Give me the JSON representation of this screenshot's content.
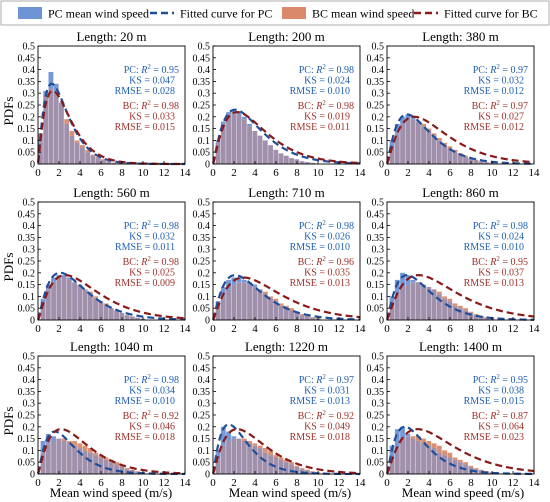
{
  "legend": {
    "items": [
      {
        "label": "PC mean wind speed",
        "kind": "bar",
        "color": "#6f94d4"
      },
      {
        "label": "Fitted curve for PC",
        "kind": "line",
        "color": "#1f4e9c"
      },
      {
        "label": "BC mean wind speed",
        "kind": "bar",
        "color": "#d88a6a"
      },
      {
        "label": "Fitted curve for BC",
        "kind": "line",
        "color": "#8b1a1a"
      }
    ]
  },
  "colors": {
    "pc_bar": "#6f94d4",
    "bc_bar": "#d88a6a",
    "pc_curve": "#1f4e9c",
    "bc_curve": "#8b1a1a",
    "pc_text": "#1f5fb0",
    "bc_text": "#a0322a",
    "overlap": "#9b8aa6"
  },
  "xlabel": "Mean wind speed (m/s)",
  "ylabel": "PDFs",
  "chart_data": [
    {
      "type": "bar",
      "title": "Length: 20 m",
      "x": [
        0.25,
        0.75,
        1.25,
        1.75,
        2.25,
        2.75,
        3.25,
        3.75,
        4.25,
        4.75,
        5.25,
        5.75,
        6.25,
        6.75,
        7.25,
        7.75
      ],
      "series": [
        {
          "name": "PC mean wind speed",
          "values": [
            0.13,
            0.31,
            0.39,
            0.34,
            0.26,
            0.17,
            0.12,
            0.09,
            0.07,
            0.05,
            0.035,
            0.025,
            0.015,
            0.01,
            0.005,
            0.003
          ]
        },
        {
          "name": "BC mean wind speed",
          "values": [
            0.13,
            0.29,
            0.32,
            0.3,
            0.25,
            0.19,
            0.14,
            0.1,
            0.08,
            0.06,
            0.04,
            0.03,
            0.02,
            0.012,
            0.006,
            0.003
          ]
        }
      ],
      "fit": {
        "pc_peak": [
          1.3,
          0.34
        ],
        "bc_peak": [
          1.4,
          0.31
        ]
      },
      "stats": {
        "pc": {
          "r2": "0.95",
          "ks": "0.047",
          "rmse": "0.028"
        },
        "bc": {
          "r2": "0.98",
          "ks": "0.033",
          "rmse": "0.015"
        }
      },
      "xlim": [
        0,
        14
      ],
      "ylim": [
        0,
        0.5
      ],
      "xticks": [
        0,
        2,
        4,
        6,
        8,
        10,
        12,
        14
      ],
      "yticks": [
        "0",
        "0.05",
        "0.1",
        "0.15",
        "0.2",
        "0.25",
        "0.3",
        "0.35",
        "0.4",
        "0.45",
        "0.5"
      ]
    },
    {
      "type": "bar",
      "title": "Length: 200 m",
      "x": [
        0.5,
        1.0,
        1.5,
        2.0,
        2.5,
        3.0,
        3.5,
        4.0,
        4.5,
        5.0,
        5.5,
        6.0,
        6.5,
        7.0,
        7.5,
        8.0,
        8.5,
        9.0,
        9.5
      ],
      "series": [
        {
          "name": "PC mean wind speed",
          "values": [
            0.1,
            0.18,
            0.22,
            0.23,
            0.22,
            0.2,
            0.17,
            0.14,
            0.12,
            0.1,
            0.08,
            0.06,
            0.045,
            0.035,
            0.025,
            0.02,
            0.012,
            0.008,
            0.005
          ]
        },
        {
          "name": "BC mean wind speed",
          "values": [
            0.09,
            0.17,
            0.21,
            0.22,
            0.21,
            0.19,
            0.16,
            0.14,
            0.12,
            0.1,
            0.08,
            0.06,
            0.045,
            0.035,
            0.025,
            0.02,
            0.012,
            0.008,
            0.005
          ]
        }
      ],
      "fit": {
        "pc_peak": [
          2.1,
          0.23
        ],
        "bc_peak": [
          2.3,
          0.22
        ]
      },
      "stats": {
        "pc": {
          "r2": "0.98",
          "ks": "0.024",
          "rmse": "0.010"
        },
        "bc": {
          "r2": "0.98",
          "ks": "0.019",
          "rmse": "0.011"
        }
      },
      "xlim": [
        0,
        14
      ],
      "ylim": [
        0,
        0.5
      ],
      "xticks": [
        0,
        2,
        4,
        6,
        8,
        10,
        12,
        14
      ],
      "yticks": [
        "0",
        "0.05",
        "0.1",
        "0.15",
        "0.2",
        "0.25",
        "0.3",
        "0.35",
        "0.4",
        "0.45",
        "0.5"
      ]
    },
    {
      "type": "bar",
      "title": "Length: 380 m",
      "x": [
        0.5,
        1.0,
        1.5,
        2.0,
        2.5,
        3.0,
        3.5,
        4.0,
        4.5,
        5.0,
        5.5,
        6.0,
        6.5,
        7.0,
        7.5,
        8.0,
        8.5,
        9.0,
        9.5,
        10.0
      ],
      "series": [
        {
          "name": "PC mean wind speed",
          "values": [
            0.1,
            0.17,
            0.2,
            0.21,
            0.2,
            0.18,
            0.16,
            0.14,
            0.12,
            0.1,
            0.08,
            0.065,
            0.05,
            0.04,
            0.03,
            0.022,
            0.015,
            0.01,
            0.006,
            0.004
          ]
        },
        {
          "name": "BC mean wind speed",
          "values": [
            0.07,
            0.13,
            0.17,
            0.19,
            0.19,
            0.18,
            0.17,
            0.15,
            0.13,
            0.11,
            0.09,
            0.075,
            0.06,
            0.045,
            0.035,
            0.025,
            0.018,
            0.012,
            0.008,
            0.005
          ]
        }
      ],
      "fit": {
        "pc_peak": [
          1.9,
          0.21
        ],
        "bc_peak": [
          2.6,
          0.2
        ]
      },
      "stats": {
        "pc": {
          "r2": "0.97",
          "ks": "0.032",
          "rmse": "0.012"
        },
        "bc": {
          "r2": "0.97",
          "ks": "0.027",
          "rmse": "0.012"
        }
      },
      "xlim": [
        0,
        14
      ],
      "ylim": [
        0,
        0.5
      ],
      "xticks": [
        0,
        2,
        4,
        6,
        8,
        10,
        12,
        14
      ],
      "yticks": [
        "0",
        "0.05",
        "0.1",
        "0.15",
        "0.2",
        "0.25",
        "0.3",
        "0.35",
        "0.4",
        "0.45",
        "0.5"
      ]
    },
    {
      "type": "bar",
      "title": "Length: 560 m",
      "x": [
        0.5,
        1.0,
        1.5,
        2.0,
        2.5,
        3.0,
        3.5,
        4.0,
        4.5,
        5.0,
        5.5,
        6.0,
        6.5,
        7.0,
        7.5,
        8.0,
        8.5,
        9.0,
        9.5,
        10.0
      ],
      "series": [
        {
          "name": "PC mean wind speed",
          "values": [
            0.09,
            0.15,
            0.18,
            0.19,
            0.19,
            0.18,
            0.16,
            0.15,
            0.13,
            0.11,
            0.09,
            0.08,
            0.06,
            0.05,
            0.04,
            0.03,
            0.02,
            0.015,
            0.01,
            0.006
          ]
        },
        {
          "name": "BC mean wind speed",
          "values": [
            0.07,
            0.13,
            0.16,
            0.18,
            0.18,
            0.17,
            0.16,
            0.15,
            0.13,
            0.12,
            0.1,
            0.08,
            0.07,
            0.05,
            0.04,
            0.03,
            0.022,
            0.015,
            0.01,
            0.006
          ]
        }
      ],
      "fit": {
        "pc_peak": [
          2.1,
          0.2
        ],
        "bc_peak": [
          2.6,
          0.19
        ]
      },
      "stats": {
        "pc": {
          "r2": "0.98",
          "ks": "0.032",
          "rmse": "0.011"
        },
        "bc": {
          "r2": "0.98",
          "ks": "0.025",
          "rmse": "0.009"
        }
      },
      "xlim": [
        0,
        14
      ],
      "ylim": [
        0,
        0.5
      ],
      "xticks": [
        0,
        2,
        4,
        6,
        8,
        10,
        12,
        14
      ],
      "yticks": [
        "0",
        "0.05",
        "0.1",
        "0.15",
        "0.2",
        "0.25",
        "0.3",
        "0.35",
        "0.4",
        "0.45",
        "0.5"
      ]
    },
    {
      "type": "bar",
      "title": "Length: 710 m",
      "x": [
        0.5,
        1.0,
        1.5,
        2.0,
        2.5,
        3.0,
        3.5,
        4.0,
        4.5,
        5.0,
        5.5,
        6.0,
        6.5,
        7.0,
        7.5,
        8.0,
        8.5,
        9.0,
        9.5,
        10.0
      ],
      "series": [
        {
          "name": "PC mean wind speed",
          "values": [
            0.08,
            0.14,
            0.17,
            0.18,
            0.18,
            0.17,
            0.16,
            0.15,
            0.13,
            0.11,
            0.09,
            0.08,
            0.06,
            0.05,
            0.04,
            0.03,
            0.02,
            0.015,
            0.01,
            0.006
          ]
        },
        {
          "name": "BC mean wind speed",
          "values": [
            0.06,
            0.1,
            0.13,
            0.15,
            0.16,
            0.16,
            0.15,
            0.14,
            0.13,
            0.12,
            0.1,
            0.09,
            0.07,
            0.06,
            0.05,
            0.035,
            0.025,
            0.018,
            0.012,
            0.008
          ]
        }
      ],
      "fit": {
        "pc_peak": [
          2.1,
          0.19
        ],
        "bc_peak": [
          2.9,
          0.18
        ]
      },
      "stats": {
        "pc": {
          "r2": "0.98",
          "ks": "0.026",
          "rmse": "0.010"
        },
        "bc": {
          "r2": "0.96",
          "ks": "0.035",
          "rmse": "0.013"
        }
      },
      "xlim": [
        0,
        14
      ],
      "ylim": [
        0,
        0.5
      ],
      "xticks": [
        0,
        2,
        4,
        6,
        8,
        10,
        12,
        14
      ],
      "yticks": [
        "0",
        "0.05",
        "0.1",
        "0.15",
        "0.2",
        "0.25",
        "0.3",
        "0.35",
        "0.4",
        "0.45",
        "0.5"
      ]
    },
    {
      "type": "bar",
      "title": "Length: 860 m",
      "x": [
        0.5,
        1.0,
        1.5,
        2.0,
        2.5,
        3.0,
        3.5,
        4.0,
        4.5,
        5.0,
        5.5,
        6.0,
        6.5,
        7.0,
        7.5,
        8.0,
        8.5,
        9.0,
        9.5,
        10.0
      ],
      "series": [
        {
          "name": "PC mean wind speed",
          "values": [
            0.1,
            0.17,
            0.2,
            0.19,
            0.17,
            0.16,
            0.15,
            0.14,
            0.13,
            0.11,
            0.09,
            0.08,
            0.06,
            0.05,
            0.04,
            0.03,
            0.02,
            0.015,
            0.01,
            0.006
          ]
        },
        {
          "name": "BC mean wind speed",
          "values": [
            0.06,
            0.11,
            0.14,
            0.15,
            0.16,
            0.16,
            0.15,
            0.14,
            0.13,
            0.12,
            0.1,
            0.09,
            0.07,
            0.06,
            0.05,
            0.035,
            0.025,
            0.018,
            0.012,
            0.008
          ]
        }
      ],
      "fit": {
        "pc_peak": [
          1.9,
          0.19
        ],
        "bc_peak": [
          3.0,
          0.19
        ]
      },
      "stats": {
        "pc": {
          "r2": "0.98",
          "ks": "0.024",
          "rmse": "0.010"
        },
        "bc": {
          "r2": "0.95",
          "ks": "0.037",
          "rmse": "0.013"
        }
      },
      "xlim": [
        0,
        14
      ],
      "ylim": [
        0,
        0.5
      ],
      "xticks": [
        0,
        2,
        4,
        6,
        8,
        10,
        12,
        14
      ],
      "yticks": [
        "0",
        "0.05",
        "0.1",
        "0.15",
        "0.2",
        "0.25",
        "0.3",
        "0.35",
        "0.4",
        "0.45",
        "0.5"
      ]
    },
    {
      "type": "bar",
      "title": "Length: 1040 m",
      "x": [
        0.5,
        1.0,
        1.5,
        2.0,
        2.5,
        3.0,
        3.5,
        4.0,
        4.5,
        5.0,
        5.5,
        6.0,
        6.5,
        7.0,
        7.5,
        8.0,
        8.5,
        9.0,
        9.5,
        10.0
      ],
      "series": [
        {
          "name": "PC mean wind speed",
          "values": [
            0.14,
            0.17,
            0.16,
            0.15,
            0.14,
            0.13,
            0.12,
            0.11,
            0.1,
            0.09,
            0.08,
            0.07,
            0.06,
            0.05,
            0.04,
            0.03,
            0.02,
            0.015,
            0.01,
            0.006
          ]
        },
        {
          "name": "BC mean wind speed",
          "values": [
            0.09,
            0.13,
            0.14,
            0.15,
            0.15,
            0.14,
            0.14,
            0.13,
            0.12,
            0.11,
            0.09,
            0.08,
            0.07,
            0.06,
            0.05,
            0.035,
            0.025,
            0.018,
            0.012,
            0.008
          ]
        }
      ],
      "fit": {
        "pc_peak": [
          1.6,
          0.18
        ],
        "bc_peak": [
          2.2,
          0.19
        ]
      },
      "stats": {
        "pc": {
          "r2": "0.98",
          "ks": "0.034",
          "rmse": "0.010"
        },
        "bc": {
          "r2": "0.92",
          "ks": "0.046",
          "rmse": "0.018"
        }
      },
      "xlim": [
        0,
        14
      ],
      "ylim": [
        0,
        0.5
      ],
      "xticks": [
        0,
        2,
        4,
        6,
        8,
        10,
        12,
        14
      ],
      "yticks": [
        "0",
        "0.05",
        "0.1",
        "0.15",
        "0.2",
        "0.25",
        "0.3",
        "0.35",
        "0.4",
        "0.45",
        "0.5"
      ]
    },
    {
      "type": "bar",
      "title": "Length: 1220 m",
      "x": [
        0.5,
        1.0,
        1.5,
        2.0,
        2.5,
        3.0,
        3.5,
        4.0,
        4.5,
        5.0,
        5.5,
        6.0,
        6.5,
        7.0,
        7.5,
        8.0,
        8.5,
        9.0,
        9.5,
        10.0
      ],
      "series": [
        {
          "name": "PC mean wind speed",
          "values": [
            0.1,
            0.2,
            0.18,
            0.16,
            0.15,
            0.14,
            0.13,
            0.12,
            0.11,
            0.09,
            0.08,
            0.07,
            0.06,
            0.05,
            0.04,
            0.03,
            0.02,
            0.015,
            0.01,
            0.006
          ]
        },
        {
          "name": "BC mean wind speed",
          "values": [
            0.06,
            0.12,
            0.14,
            0.15,
            0.15,
            0.15,
            0.14,
            0.13,
            0.12,
            0.11,
            0.1,
            0.08,
            0.07,
            0.06,
            0.05,
            0.035,
            0.025,
            0.018,
            0.012,
            0.008
          ]
        }
      ],
      "fit": {
        "pc_peak": [
          1.5,
          0.21
        ],
        "bc_peak": [
          2.3,
          0.19
        ]
      },
      "stats": {
        "pc": {
          "r2": "0.97",
          "ks": "0.031",
          "rmse": "0.013"
        },
        "bc": {
          "r2": "0.92",
          "ks": "0.049",
          "rmse": "0.018"
        }
      },
      "xlim": [
        0,
        14
      ],
      "ylim": [
        0,
        0.5
      ],
      "xticks": [
        0,
        2,
        4,
        6,
        8,
        10,
        12,
        14
      ],
      "yticks": [
        "0",
        "0.05",
        "0.1",
        "0.15",
        "0.2",
        "0.25",
        "0.3",
        "0.35",
        "0.4",
        "0.45",
        "0.5"
      ]
    },
    {
      "type": "bar",
      "title": "Length: 1400 m",
      "x": [
        0.5,
        1.0,
        1.5,
        2.0,
        2.5,
        3.0,
        3.5,
        4.0,
        4.5,
        5.0,
        5.5,
        6.0,
        6.5,
        7.0,
        7.5,
        8.0,
        8.5,
        9.0,
        9.5,
        10.0
      ],
      "series": [
        {
          "name": "PC mean wind speed",
          "values": [
            0.12,
            0.19,
            0.2,
            0.17,
            0.15,
            0.14,
            0.13,
            0.12,
            0.11,
            0.09,
            0.08,
            0.07,
            0.06,
            0.05,
            0.04,
            0.03,
            0.02,
            0.015,
            0.01,
            0.006
          ]
        },
        {
          "name": "BC mean wind speed",
          "values": [
            0.06,
            0.11,
            0.15,
            0.16,
            0.16,
            0.16,
            0.15,
            0.14,
            0.13,
            0.12,
            0.1,
            0.09,
            0.07,
            0.06,
            0.05,
            0.035,
            0.025,
            0.018,
            0.012,
            0.008
          ]
        }
      ],
      "fit": {
        "pc_peak": [
          1.7,
          0.2
        ],
        "bc_peak": [
          2.9,
          0.19
        ]
      },
      "stats": {
        "pc": {
          "r2": "0.95",
          "ks": "0.038",
          "rmse": "0.015"
        },
        "bc": {
          "r2": "0.87",
          "ks": "0.064",
          "rmse": "0.023"
        }
      },
      "xlim": [
        0,
        14
      ],
      "ylim": [
        0,
        0.5
      ],
      "xticks": [
        0,
        2,
        4,
        6,
        8,
        10,
        12,
        14
      ],
      "yticks": [
        "0",
        "0.05",
        "0.1",
        "0.15",
        "0.2",
        "0.25",
        "0.3",
        "0.35",
        "0.4",
        "0.45",
        "0.5"
      ]
    }
  ]
}
